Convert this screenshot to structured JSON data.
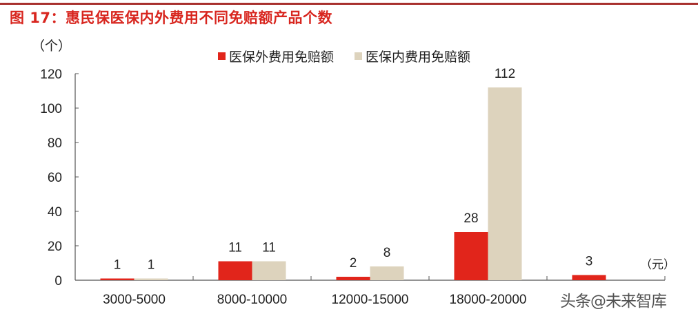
{
  "header": {
    "title": "图 17：惠民保医保内外费用不同免赔额产品个数"
  },
  "axis": {
    "y_unit": "（个）",
    "x_unit": "（元）"
  },
  "legend": [
    {
      "label": "医保外费用免赔额",
      "color": "#e1251b"
    },
    {
      "label": "医保内费用免赔额",
      "color": "#ddd3bd"
    }
  ],
  "watermark": "头条@未来智库",
  "chart_data": {
    "type": "bar",
    "title": "图 17：惠民保医保内外费用不同免赔额产品个数",
    "xlabel": "（元）",
    "ylabel": "（个）",
    "ylim": [
      0,
      120
    ],
    "yticks": [
      0,
      20,
      40,
      60,
      80,
      100,
      120
    ],
    "categories": [
      "3000-5000",
      "8000-10000",
      "12000-15000",
      "18000-20000",
      ""
    ],
    "series": [
      {
        "name": "医保外费用免赔额",
        "color": "#e1251b",
        "values": [
          1,
          11,
          2,
          28,
          3
        ]
      },
      {
        "name": "医保内费用免赔额",
        "color": "#ddd3bd",
        "values": [
          1,
          11,
          8,
          112,
          null
        ]
      }
    ],
    "data_labels": true,
    "grid": false,
    "legend_position": "top"
  }
}
